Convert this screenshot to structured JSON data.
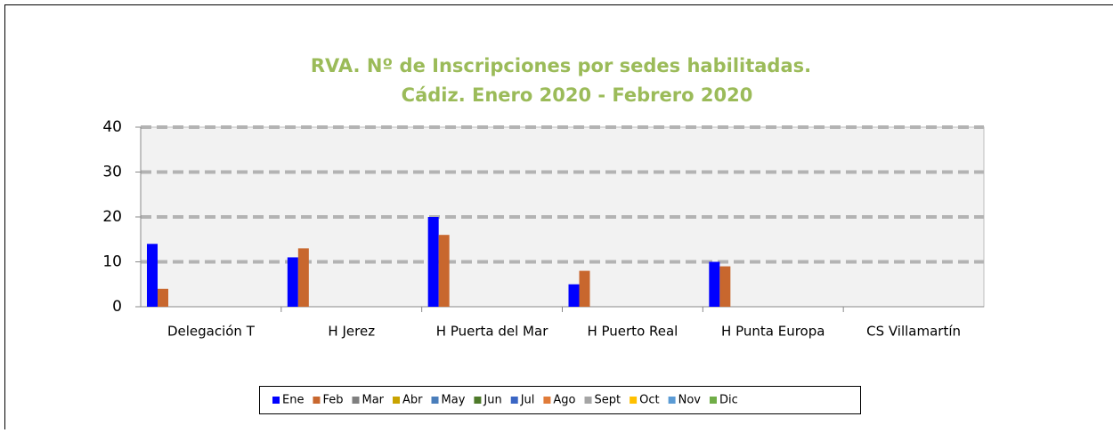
{
  "chart_data": {
    "type": "bar",
    "title": [
      "RVA. Nº de Inscripciones por sedes habilitadas.",
      "Cádiz. Enero 2020 - Febrero 2020"
    ],
    "categories": [
      "Delegación T",
      "H Jerez",
      "H Puerta del Mar",
      "H Puerto Real",
      "H Punta Europa",
      "CS Villamartín"
    ],
    "series": [
      {
        "name": "Ene",
        "color": "#0000ff",
        "values": [
          14,
          11,
          20,
          5,
          10,
          null
        ]
      },
      {
        "name": "Feb",
        "color": "#c8672e",
        "values": [
          4,
          13,
          16,
          8,
          9,
          null
        ]
      },
      {
        "name": "Mar",
        "color": "#7f7f7f",
        "values": [
          null,
          null,
          null,
          null,
          null,
          null
        ]
      },
      {
        "name": "Abr",
        "color": "#c9a300",
        "values": [
          null,
          null,
          null,
          null,
          null,
          null
        ]
      },
      {
        "name": "May",
        "color": "#4a7ebb",
        "values": [
          null,
          null,
          null,
          null,
          null,
          null
        ]
      },
      {
        "name": "Jun",
        "color": "#4e7a2a",
        "values": [
          null,
          null,
          null,
          null,
          null,
          null
        ]
      },
      {
        "name": "Jul",
        "color": "#3a66c4",
        "values": [
          null,
          null,
          null,
          null,
          null,
          null
        ]
      },
      {
        "name": "Ago",
        "color": "#e07b39",
        "values": [
          null,
          null,
          null,
          null,
          null,
          null
        ]
      },
      {
        "name": "Sept",
        "color": "#a5a5a5",
        "values": [
          null,
          null,
          null,
          null,
          null,
          null
        ]
      },
      {
        "name": "Oct",
        "color": "#ffc000",
        "values": [
          null,
          null,
          null,
          null,
          null,
          null
        ]
      },
      {
        "name": "Nov",
        "color": "#5b9bd5",
        "values": [
          null,
          null,
          null,
          null,
          null,
          null
        ]
      },
      {
        "name": "Dic",
        "color": "#70ad47",
        "values": [
          null,
          null,
          null,
          null,
          null,
          null
        ]
      }
    ],
    "ylim": [
      0,
      40
    ],
    "yticks": [
      0,
      10,
      20,
      30,
      40
    ],
    "grid": true,
    "legend": "bottom"
  }
}
